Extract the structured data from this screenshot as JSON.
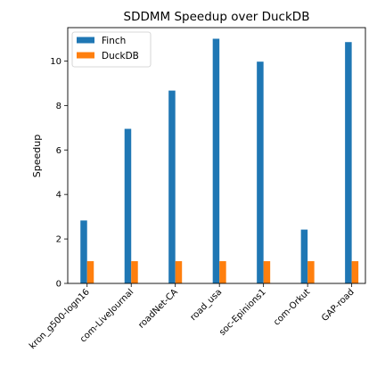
{
  "chart_data": {
    "type": "bar",
    "title": "SDDMM Speedup over DuckDB",
    "xlabel": "",
    "ylabel": "Speedup",
    "ylim": [
      0,
      11.5
    ],
    "yticks": [
      0,
      2,
      4,
      6,
      8,
      10
    ],
    "grid": false,
    "legend_position": "top-left",
    "categories": [
      "kron_g500-logn16",
      "com-LiveJournal",
      "roadNet-CA",
      "road_usa",
      "soc-Epinions1",
      "com-Orkut",
      "GAP-road"
    ],
    "series": [
      {
        "name": "Finch",
        "color": "#1f77b4",
        "values": [
          2.83,
          6.95,
          8.67,
          11.0,
          9.97,
          2.42,
          10.85
        ]
      },
      {
        "name": "DuckDB",
        "color": "#ff7f0e",
        "values": [
          1.0,
          1.0,
          1.0,
          1.0,
          1.0,
          1.0,
          1.0
        ]
      }
    ]
  }
}
